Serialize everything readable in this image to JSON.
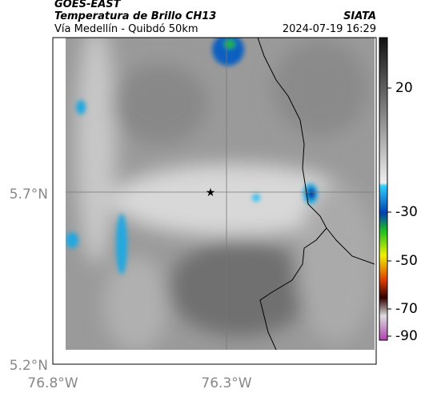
{
  "header": {
    "agency": "GOES-EAST",
    "title": "Temperatura de Brillo CH13",
    "subtitle": "Vía Medellín - Quibdó 50km",
    "source": "SIATA",
    "timestamp": "2024-07-19 16:29"
  },
  "axes": {
    "y_labels": [
      "5.7°N",
      "5.2°N"
    ],
    "x_labels": [
      "76.8°W",
      "76.3°W"
    ]
  },
  "colorbar": {
    "ticks": [
      20,
      -30,
      -50,
      -70,
      -90
    ]
  }
}
